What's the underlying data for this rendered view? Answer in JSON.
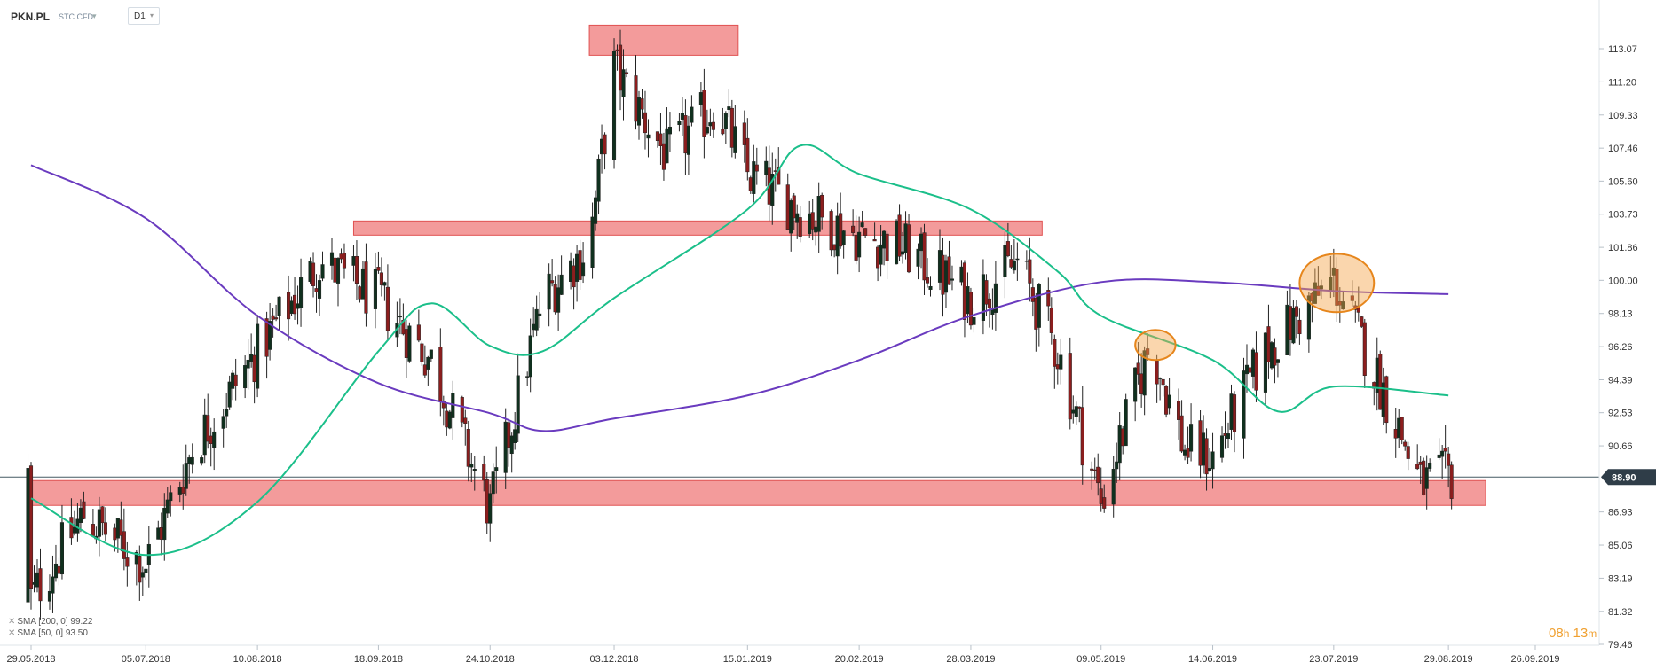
{
  "header": {
    "symbol": "PKN.PL",
    "instrument_type": "STC CFD",
    "timeframe": "D1"
  },
  "legend": [
    {
      "label": "SMA [200, 0] 99.22",
      "color": "#6a3bbf"
    },
    {
      "label": "SMA [50, 0] 93.50",
      "color": "#1bbf8a"
    }
  ],
  "timer": {
    "hours": "08",
    "hours_unit": "h",
    "minutes": "13",
    "minutes_unit": "m"
  },
  "chart_data": {
    "type": "candlestick",
    "symbol": "PKN.PL",
    "timeframe": "D1",
    "current_price": "88.90",
    "y_ticks": [
      "113.07",
      "111.20",
      "109.33",
      "107.46",
      "105.60",
      "103.73",
      "101.86",
      "100.00",
      "98.13",
      "96.26",
      "94.39",
      "92.53",
      "90.66",
      "88.79",
      "86.93",
      "85.06",
      "83.19",
      "81.32",
      "79.46"
    ],
    "x_ticks": [
      "29.05.2018",
      "05.07.2018",
      "10.08.2018",
      "18.09.2018",
      "24.10.2018",
      "03.12.2018",
      "15.01.2019",
      "20.02.2019",
      "28.03.2019",
      "09.05.2019",
      "14.06.2019",
      "23.07.2019",
      "29.08.2019",
      "26.09.2019"
    ],
    "ylim": [
      79.46,
      114.5
    ],
    "price_path": [
      {
        "x": "29.05.2018",
        "y": 82.0
      },
      {
        "x": "15.06.2018",
        "y": 86.8
      },
      {
        "x": "05.07.2018",
        "y": 84.0
      },
      {
        "x": "20.07.2018",
        "y": 90.5
      },
      {
        "x": "10.08.2018",
        "y": 96.0
      },
      {
        "x": "30.08.2018",
        "y": 101.0
      },
      {
        "x": "18.09.2018",
        "y": 99.0
      },
      {
        "x": "05.10.2018",
        "y": 95.5
      },
      {
        "x": "24.10.2018",
        "y": 87.0
      },
      {
        "x": "10.11.2018",
        "y": 99.0
      },
      {
        "x": "25.11.2018",
        "y": 102.0
      },
      {
        "x": "03.12.2018",
        "y": 112.0
      },
      {
        "x": "20.12.2018",
        "y": 107.0
      },
      {
        "x": "05.01.2019",
        "y": 110.0
      },
      {
        "x": "15.01.2019",
        "y": 106.0
      },
      {
        "x": "01.02.2019",
        "y": 104.0
      },
      {
        "x": "20.02.2019",
        "y": 102.5
      },
      {
        "x": "05.03.2019",
        "y": 102.0
      },
      {
        "x": "28.03.2019",
        "y": 99.0
      },
      {
        "x": "12.04.2019",
        "y": 101.0
      },
      {
        "x": "25.04.2019",
        "y": 96.0
      },
      {
        "x": "09.05.2019",
        "y": 87.5
      },
      {
        "x": "25.05.2019",
        "y": 96.5
      },
      {
        "x": "05.06.2019",
        "y": 90.5
      },
      {
        "x": "14.06.2019",
        "y": 90.0
      },
      {
        "x": "01.07.2019",
        "y": 96.0
      },
      {
        "x": "23.07.2019",
        "y": 100.0
      },
      {
        "x": "10.08.2019",
        "y": 93.0
      },
      {
        "x": "20.08.2019",
        "y": 88.5
      },
      {
        "x": "29.08.2019",
        "y": 88.9
      }
    ],
    "series": [
      {
        "name": "SMA [200, 0]",
        "color": "#6a3bbf",
        "points": [
          {
            "x": "29.05.2018",
            "y": 106.5
          },
          {
            "x": "05.07.2018",
            "y": 103.5
          },
          {
            "x": "10.08.2018",
            "y": 98.0
          },
          {
            "x": "18.09.2018",
            "y": 94.2
          },
          {
            "x": "24.10.2018",
            "y": 92.5
          },
          {
            "x": "10.11.2018",
            "y": 91.5
          },
          {
            "x": "03.12.2018",
            "y": 92.2
          },
          {
            "x": "15.01.2019",
            "y": 93.5
          },
          {
            "x": "20.02.2019",
            "y": 95.5
          },
          {
            "x": "28.03.2019",
            "y": 98.0
          },
          {
            "x": "09.05.2019",
            "y": 99.9
          },
          {
            "x": "14.06.2019",
            "y": 99.9
          },
          {
            "x": "23.07.2019",
            "y": 99.4
          },
          {
            "x": "29.08.2019",
            "y": 99.22
          }
        ]
      },
      {
        "name": "SMA [50, 0]",
        "color": "#1bbf8a",
        "points": [
          {
            "x": "29.05.2018",
            "y": 87.7
          },
          {
            "x": "05.07.2018",
            "y": 84.5
          },
          {
            "x": "10.08.2018",
            "y": 87.5
          },
          {
            "x": "18.09.2018",
            "y": 96.0
          },
          {
            "x": "05.10.2018",
            "y": 98.7
          },
          {
            "x": "24.10.2018",
            "y": 96.3
          },
          {
            "x": "10.11.2018",
            "y": 96.0
          },
          {
            "x": "03.12.2018",
            "y": 99.0
          },
          {
            "x": "15.01.2019",
            "y": 104.0
          },
          {
            "x": "01.02.2019",
            "y": 107.6
          },
          {
            "x": "20.02.2019",
            "y": 106.0
          },
          {
            "x": "28.03.2019",
            "y": 104.0
          },
          {
            "x": "25.04.2019",
            "y": 100.5
          },
          {
            "x": "09.05.2019",
            "y": 98.0
          },
          {
            "x": "14.06.2019",
            "y": 95.5
          },
          {
            "x": "05.07.2019",
            "y": 92.6
          },
          {
            "x": "23.07.2019",
            "y": 94.0
          },
          {
            "x": "29.08.2019",
            "y": 93.5
          }
        ]
      }
    ],
    "zones": [
      {
        "from": "29.05.2018",
        "to": "10.09.2019",
        "y1": 87.3,
        "y2": 88.7
      },
      {
        "from": "25.11.2018",
        "to": "12.01.2019",
        "y1": 114.4,
        "y2": 112.7
      },
      {
        "from": "10.09.2018",
        "to": "20.04.2019",
        "y1": 103.35,
        "y2": 102.55
      }
    ],
    "ellipses": [
      {
        "x1": "20.05.2019",
        "x2": "02.06.2019",
        "y1": 97.2,
        "y2": 95.5
      },
      {
        "x1": "12.07.2019",
        "x2": "05.08.2019",
        "y1": 101.5,
        "y2": 98.2
      }
    ],
    "horizontal_line": 88.9
  }
}
